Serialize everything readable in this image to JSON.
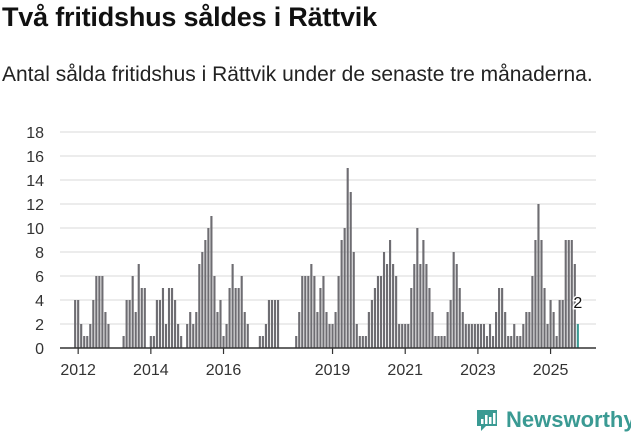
{
  "title": "Två fritidshus såldes i Rättvik",
  "subtitle": "Antal sålda fritidshus i Rättvik under de senaste tre månaderna.",
  "brand": {
    "name": "Newsworthy",
    "icon": "bar-chart-logo-icon",
    "color": "#3a9a93"
  },
  "chart_data": {
    "type": "bar",
    "title": "",
    "xlabel": "",
    "ylabel": "",
    "ylim": [
      0,
      18
    ],
    "yticks": [
      0,
      2,
      4,
      6,
      8,
      10,
      12,
      14,
      16,
      18
    ],
    "xticks": [
      "2012",
      "2014",
      "2016",
      "2019",
      "2021",
      "2023",
      "2025"
    ],
    "grid": true,
    "colors": {
      "bar": "#6e6d72",
      "highlight": "#3a9a93",
      "grid": "#d8d8d8",
      "axis": "#333333"
    },
    "series": [
      {
        "values": [
          [
            "2011-12",
            4
          ],
          [
            "2012-01",
            4
          ],
          [
            "2012-02",
            2
          ],
          [
            "2012-03",
            1
          ],
          [
            "2012-04",
            1
          ],
          [
            "2012-05",
            2
          ],
          [
            "2012-06",
            4
          ],
          [
            "2012-07",
            6
          ],
          [
            "2012-08",
            6
          ],
          [
            "2012-09",
            6
          ],
          [
            "2012-10",
            3
          ],
          [
            "2012-11",
            2
          ],
          [
            "2013-04",
            1
          ],
          [
            "2013-05",
            4
          ],
          [
            "2013-06",
            4
          ],
          [
            "2013-07",
            6
          ],
          [
            "2013-08",
            3
          ],
          [
            "2013-09",
            7
          ],
          [
            "2013-10",
            5
          ],
          [
            "2013-11",
            5
          ],
          [
            "2014-01",
            1
          ],
          [
            "2014-02",
            1
          ],
          [
            "2014-03",
            4
          ],
          [
            "2014-04",
            4
          ],
          [
            "2014-05",
            5
          ],
          [
            "2014-06",
            2
          ],
          [
            "2014-07",
            5
          ],
          [
            "2014-08",
            5
          ],
          [
            "2014-09",
            4
          ],
          [
            "2014-10",
            2
          ],
          [
            "2014-11",
            1
          ],
          [
            "2015-01",
            2
          ],
          [
            "2015-02",
            3
          ],
          [
            "2015-03",
            2
          ],
          [
            "2015-04",
            3
          ],
          [
            "2015-05",
            7
          ],
          [
            "2015-06",
            8
          ],
          [
            "2015-07",
            9
          ],
          [
            "2015-08",
            10
          ],
          [
            "2015-09",
            11
          ],
          [
            "2015-10",
            6
          ],
          [
            "2015-11",
            3
          ],
          [
            "2015-12",
            4
          ],
          [
            "2016-01",
            1
          ],
          [
            "2016-02",
            2
          ],
          [
            "2016-03",
            5
          ],
          [
            "2016-04",
            7
          ],
          [
            "2016-05",
            5
          ],
          [
            "2016-06",
            5
          ],
          [
            "2016-07",
            6
          ],
          [
            "2016-08",
            3
          ],
          [
            "2016-09",
            2
          ],
          [
            "2017-01",
            1
          ],
          [
            "2017-02",
            1
          ],
          [
            "2017-03",
            2
          ],
          [
            "2017-04",
            4
          ],
          [
            "2017-05",
            4
          ],
          [
            "2017-06",
            4
          ],
          [
            "2017-07",
            4
          ],
          [
            "2018-01",
            1
          ],
          [
            "2018-02",
            3
          ],
          [
            "2018-03",
            6
          ],
          [
            "2018-04",
            6
          ],
          [
            "2018-05",
            6
          ],
          [
            "2018-06",
            7
          ],
          [
            "2018-07",
            6
          ],
          [
            "2018-08",
            3
          ],
          [
            "2018-09",
            5
          ],
          [
            "2018-10",
            6
          ],
          [
            "2018-11",
            3
          ],
          [
            "2018-12",
            2
          ],
          [
            "2019-01",
            2
          ],
          [
            "2019-02",
            3
          ],
          [
            "2019-03",
            6
          ],
          [
            "2019-04",
            9
          ],
          [
            "2019-05",
            10
          ],
          [
            "2019-06",
            15
          ],
          [
            "2019-07",
            13
          ],
          [
            "2019-08",
            8
          ],
          [
            "2019-09",
            2
          ],
          [
            "2019-10",
            1
          ],
          [
            "2019-11",
            1
          ],
          [
            "2019-12",
            1
          ],
          [
            "2020-01",
            3
          ],
          [
            "2020-02",
            4
          ],
          [
            "2020-03",
            5
          ],
          [
            "2020-04",
            6
          ],
          [
            "2020-05",
            6
          ],
          [
            "2020-06",
            8
          ],
          [
            "2020-07",
            7
          ],
          [
            "2020-08",
            9
          ],
          [
            "2020-09",
            7
          ],
          [
            "2020-10",
            6
          ],
          [
            "2020-11",
            2
          ],
          [
            "2020-12",
            2
          ],
          [
            "2021-01",
            2
          ],
          [
            "2021-02",
            2
          ],
          [
            "2021-03",
            5
          ],
          [
            "2021-04",
            7
          ],
          [
            "2021-05",
            10
          ],
          [
            "2021-06",
            7
          ],
          [
            "2021-07",
            9
          ],
          [
            "2021-08",
            7
          ],
          [
            "2021-09",
            5
          ],
          [
            "2021-10",
            3
          ],
          [
            "2021-11",
            1
          ],
          [
            "2021-12",
            1
          ],
          [
            "2022-01",
            1
          ],
          [
            "2022-02",
            1
          ],
          [
            "2022-03",
            3
          ],
          [
            "2022-04",
            4
          ],
          [
            "2022-05",
            8
          ],
          [
            "2022-06",
            7
          ],
          [
            "2022-07",
            5
          ],
          [
            "2022-08",
            3
          ],
          [
            "2022-09",
            2
          ],
          [
            "2022-10",
            2
          ],
          [
            "2022-11",
            2
          ],
          [
            "2022-12",
            2
          ],
          [
            "2023-01",
            2
          ],
          [
            "2023-02",
            2
          ],
          [
            "2023-03",
            2
          ],
          [
            "2023-04",
            1
          ],
          [
            "2023-05",
            2
          ],
          [
            "2023-06",
            1
          ],
          [
            "2023-07",
            3
          ],
          [
            "2023-08",
            5
          ],
          [
            "2023-09",
            5
          ],
          [
            "2023-10",
            3
          ],
          [
            "2023-11",
            1
          ],
          [
            "2023-12",
            1
          ],
          [
            "2024-01",
            2
          ],
          [
            "2024-02",
            1
          ],
          [
            "2024-03",
            1
          ],
          [
            "2024-04",
            2
          ],
          [
            "2024-05",
            3
          ],
          [
            "2024-06",
            3
          ],
          [
            "2024-07",
            6
          ],
          [
            "2024-08",
            9
          ],
          [
            "2024-09",
            12
          ],
          [
            "2024-10",
            9
          ],
          [
            "2024-11",
            5
          ],
          [
            "2024-12",
            2
          ],
          [
            "2025-01",
            4
          ],
          [
            "2025-02",
            3
          ],
          [
            "2025-03",
            1
          ],
          [
            "2025-04",
            4
          ],
          [
            "2025-05",
            4
          ],
          [
            "2025-06",
            9
          ],
          [
            "2025-07",
            9
          ],
          [
            "2025-08",
            9
          ],
          [
            "2025-09",
            7
          ],
          [
            "2025-10",
            2
          ]
        ]
      }
    ],
    "annotations": [
      {
        "x": "2025-10",
        "label": "2"
      }
    ]
  }
}
